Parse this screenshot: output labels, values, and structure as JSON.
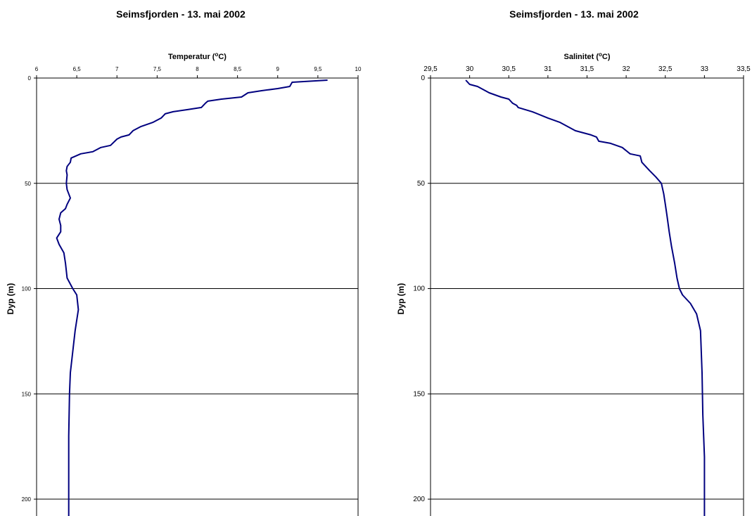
{
  "chart_data": [
    {
      "type": "line",
      "title": "Seimsfjorden - 13. mai 2002",
      "xlabel_main": "Temperatur (",
      "xlabel_sup": "o",
      "xlabel_end": "C)",
      "ylabel": "Dyp (m)",
      "xlim": [
        6,
        10
      ],
      "ylim": [
        0,
        210
      ],
      "y_inverted": true,
      "x_axis_position": "top",
      "xticks": [
        6,
        6.5,
        7,
        7.5,
        8,
        8.5,
        9,
        9.5,
        10
      ],
      "xtick_labels": [
        "6",
        "6,5",
        "7",
        "7,5",
        "8",
        "8,5",
        "9",
        "9,5",
        "10"
      ],
      "yticks": [
        0,
        50,
        100,
        150,
        200
      ],
      "ytick_labels": [
        "0",
        "50",
        "100",
        "150",
        "200"
      ],
      "gridlines": "horizontal",
      "line_color": "#00007f",
      "series": [
        {
          "x": [
            9.62,
            9.18,
            9.15,
            9.0,
            8.8,
            8.63,
            8.55,
            8.3,
            8.13,
            8.1,
            8.05,
            7.88,
            7.7,
            7.6,
            7.55,
            7.45,
            7.3,
            7.2,
            7.15,
            7.05,
            7.0,
            6.92,
            6.8,
            6.7,
            6.55,
            6.43,
            6.42,
            6.38,
            6.37,
            6.38,
            6.37,
            6.38,
            6.42,
            6.38,
            6.36,
            6.3,
            6.28,
            6.3,
            6.3,
            6.25,
            6.28,
            6.34,
            6.36,
            6.38,
            6.45,
            6.5,
            6.52,
            6.48,
            6.45,
            6.42,
            6.41,
            6.4,
            6.4,
            6.4
          ],
          "y": [
            1,
            2,
            4,
            5,
            6,
            7,
            9,
            10,
            11,
            12,
            14,
            15,
            16,
            17,
            19,
            21,
            23,
            25,
            27,
            28,
            29,
            32,
            33,
            35,
            36,
            38,
            40,
            42,
            44,
            46,
            50,
            53,
            57,
            60,
            62,
            64,
            67,
            70,
            73,
            76,
            79,
            83,
            88,
            95,
            100,
            103,
            110,
            120,
            130,
            140,
            150,
            170,
            190,
            210
          ]
        }
      ]
    },
    {
      "type": "line",
      "title": "Seimsfjorden - 13. mai 2002",
      "xlabel_main": "Salinitet (",
      "xlabel_sup": "o",
      "xlabel_end": "C)",
      "ylabel": "Dyp (m)",
      "xlim": [
        29.5,
        33.5
      ],
      "ylim": [
        0,
        210
      ],
      "y_inverted": true,
      "x_axis_position": "top",
      "xticks": [
        29.5,
        30,
        30.5,
        31,
        31.5,
        32,
        32.5,
        33,
        33.5
      ],
      "xtick_labels": [
        "29,5",
        "30",
        "30,5",
        "31",
        "31,5",
        "32",
        "32,5",
        "33",
        "33,5"
      ],
      "yticks": [
        0,
        50,
        100,
        150,
        200
      ],
      "ytick_labels": [
        "0",
        "50",
        "100",
        "150",
        "200"
      ],
      "gridlines": "horizontal",
      "line_color": "#00007f",
      "series": [
        {
          "x": [
            29.95,
            30.0,
            30.1,
            30.2,
            30.25,
            30.4,
            30.5,
            30.55,
            30.6,
            30.62,
            30.8,
            31.0,
            31.15,
            31.25,
            31.35,
            31.45,
            31.55,
            31.62,
            31.65,
            31.8,
            31.95,
            32.05,
            32.18,
            32.2,
            32.3,
            32.38,
            32.45,
            32.48,
            32.5,
            32.52,
            32.55,
            32.58,
            32.62,
            32.65,
            32.68,
            32.72,
            32.82,
            32.9,
            32.95,
            32.97,
            32.98,
            33.0,
            33.0
          ],
          "y": [
            1,
            3,
            4,
            6,
            7,
            9,
            10,
            12,
            13,
            14,
            16,
            19,
            21,
            23,
            25,
            26,
            27,
            28,
            30,
            31,
            33,
            36,
            37,
            40,
            44,
            47,
            50,
            55,
            60,
            65,
            73,
            80,
            88,
            95,
            100,
            103,
            107,
            112,
            120,
            140,
            160,
            180,
            210
          ]
        }
      ]
    }
  ]
}
